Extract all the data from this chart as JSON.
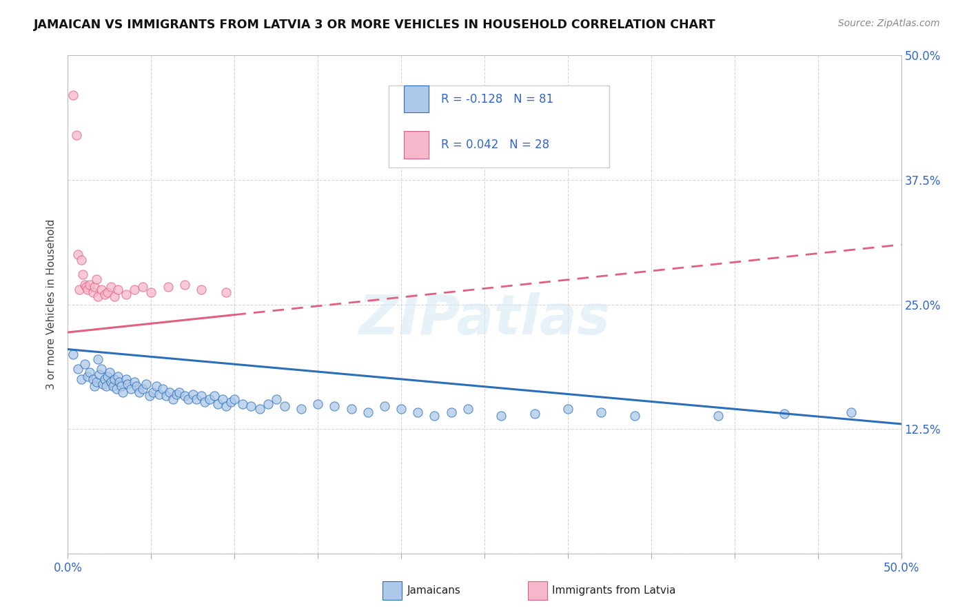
{
  "title": "JAMAICAN VS IMMIGRANTS FROM LATVIA 3 OR MORE VEHICLES IN HOUSEHOLD CORRELATION CHART",
  "source_text": "Source: ZipAtlas.com",
  "ylabel": "3 or more Vehicles in Household",
  "xlim": [
    0.0,
    0.5
  ],
  "ylim": [
    0.0,
    0.5
  ],
  "series1_color": "#adc8e8",
  "series2_color": "#f5b8cb",
  "line1_color": "#2b6fba",
  "line2_color": "#e06080",
  "R1": -0.128,
  "N1": 81,
  "R2": 0.042,
  "N2": 28,
  "legend_label1": "Jamaicans",
  "legend_label2": "Immigrants from Latvia",
  "watermark": "ZIPatlas",
  "background_color": "#ffffff",
  "grid_color": "#cccccc",
  "jamaicans_x": [
    0.003,
    0.006,
    0.008,
    0.01,
    0.012,
    0.013,
    0.015,
    0.016,
    0.017,
    0.018,
    0.019,
    0.02,
    0.021,
    0.022,
    0.023,
    0.024,
    0.025,
    0.026,
    0.027,
    0.028,
    0.029,
    0.03,
    0.031,
    0.032,
    0.033,
    0.035,
    0.036,
    0.038,
    0.04,
    0.041,
    0.043,
    0.045,
    0.047,
    0.049,
    0.051,
    0.053,
    0.055,
    0.057,
    0.059,
    0.061,
    0.063,
    0.065,
    0.067,
    0.07,
    0.072,
    0.075,
    0.077,
    0.08,
    0.082,
    0.085,
    0.088,
    0.09,
    0.093,
    0.095,
    0.098,
    0.1,
    0.105,
    0.11,
    0.115,
    0.12,
    0.125,
    0.13,
    0.14,
    0.15,
    0.16,
    0.17,
    0.18,
    0.19,
    0.2,
    0.21,
    0.22,
    0.23,
    0.24,
    0.26,
    0.28,
    0.3,
    0.32,
    0.34,
    0.39,
    0.43,
    0.47
  ],
  "jamaicans_y": [
    0.2,
    0.185,
    0.175,
    0.19,
    0.178,
    0.182,
    0.175,
    0.168,
    0.172,
    0.195,
    0.18,
    0.185,
    0.17,
    0.175,
    0.168,
    0.178,
    0.182,
    0.172,
    0.168,
    0.175,
    0.165,
    0.178,
    0.172,
    0.168,
    0.162,
    0.175,
    0.17,
    0.165,
    0.172,
    0.168,
    0.162,
    0.165,
    0.17,
    0.158,
    0.162,
    0.168,
    0.16,
    0.165,
    0.158,
    0.162,
    0.155,
    0.16,
    0.162,
    0.158,
    0.155,
    0.16,
    0.155,
    0.158,
    0.152,
    0.155,
    0.158,
    0.15,
    0.155,
    0.148,
    0.152,
    0.155,
    0.15,
    0.148,
    0.145,
    0.15,
    0.155,
    0.148,
    0.145,
    0.15,
    0.148,
    0.145,
    0.142,
    0.148,
    0.145,
    0.142,
    0.138,
    0.142,
    0.145,
    0.138,
    0.14,
    0.145,
    0.142,
    0.138,
    0.138,
    0.14,
    0.142
  ],
  "latvia_x": [
    0.003,
    0.005,
    0.006,
    0.007,
    0.008,
    0.009,
    0.01,
    0.011,
    0.012,
    0.013,
    0.015,
    0.016,
    0.017,
    0.018,
    0.02,
    0.022,
    0.024,
    0.026,
    0.028,
    0.03,
    0.035,
    0.04,
    0.045,
    0.05,
    0.06,
    0.07,
    0.08,
    0.095
  ],
  "latvia_y": [
    0.46,
    0.42,
    0.3,
    0.265,
    0.295,
    0.28,
    0.27,
    0.268,
    0.265,
    0.27,
    0.262,
    0.268,
    0.275,
    0.258,
    0.265,
    0.26,
    0.262,
    0.268,
    0.258,
    0.265,
    0.26,
    0.265,
    0.268,
    0.262,
    0.268,
    0.27,
    0.265,
    0.262
  ],
  "jline_x0": 0.0,
  "jline_x1": 0.5,
  "jline_y0": 0.205,
  "jline_y1": 0.13,
  "lline_x0": 0.0,
  "lline_x1": 0.5,
  "lline_y0": 0.222,
  "lline_y1": 0.31
}
